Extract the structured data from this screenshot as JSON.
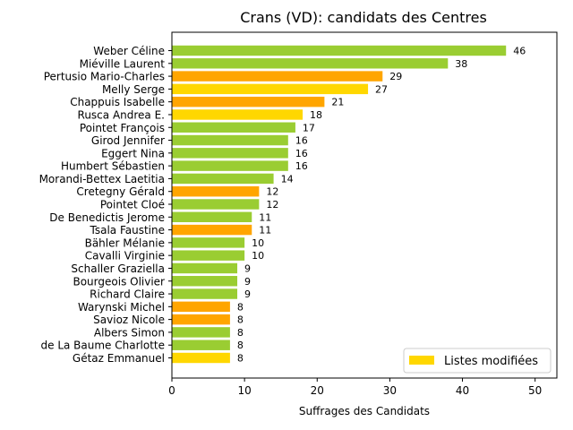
{
  "chart_data": {
    "type": "bar",
    "orientation": "horizontal",
    "title": "Crans (VD): candidats des Centres",
    "xlabel": "Suffrages des Candidats",
    "ylabel": "",
    "xlim": [
      0,
      53
    ],
    "xticks": [
      0,
      10,
      20,
      30,
      40,
      50
    ],
    "grid": false,
    "legend": {
      "position": "lower-right",
      "entries": [
        {
          "label": "Listes modifiées",
          "color": "#FFD700"
        }
      ]
    },
    "colors": {
      "green": "#9ACD32",
      "orange": "#FFA500",
      "yellow": "#FFD700"
    },
    "bars": [
      {
        "name": "Weber Céline",
        "value": 46,
        "color": "green"
      },
      {
        "name": "Miéville Laurent",
        "value": 38,
        "color": "green"
      },
      {
        "name": "Pertusio Mario-Charles",
        "value": 29,
        "color": "orange"
      },
      {
        "name": "Melly Serge",
        "value": 27,
        "color": "yellow"
      },
      {
        "name": "Chappuis Isabelle",
        "value": 21,
        "color": "orange"
      },
      {
        "name": "Rusca Andrea E.",
        "value": 18,
        "color": "yellow"
      },
      {
        "name": "Pointet François",
        "value": 17,
        "color": "green"
      },
      {
        "name": "Girod Jennifer",
        "value": 16,
        "color": "green"
      },
      {
        "name": "Eggert Nina",
        "value": 16,
        "color": "green"
      },
      {
        "name": "Humbert Sébastien",
        "value": 16,
        "color": "green"
      },
      {
        "name": "Morandi-Bettex Laetitia",
        "value": 14,
        "color": "green"
      },
      {
        "name": "Cretegny Gérald",
        "value": 12,
        "color": "orange"
      },
      {
        "name": "Pointet Cloé",
        "value": 12,
        "color": "green"
      },
      {
        "name": "De Benedictis Jerome",
        "value": 11,
        "color": "green"
      },
      {
        "name": "Tsala Faustine",
        "value": 11,
        "color": "orange"
      },
      {
        "name": "Bähler Mélanie",
        "value": 10,
        "color": "green"
      },
      {
        "name": "Cavalli Virginie",
        "value": 10,
        "color": "green"
      },
      {
        "name": "Schaller Graziella",
        "value": 9,
        "color": "green"
      },
      {
        "name": "Bourgeois Olivier",
        "value": 9,
        "color": "green"
      },
      {
        "name": "Richard Claire",
        "value": 9,
        "color": "green"
      },
      {
        "name": "Warynski Michel",
        "value": 8,
        "color": "orange"
      },
      {
        "name": "Savioz Nicole",
        "value": 8,
        "color": "orange"
      },
      {
        "name": "Albers Simon",
        "value": 8,
        "color": "green"
      },
      {
        "name": "de La Baume Charlotte",
        "value": 8,
        "color": "green"
      },
      {
        "name": "Gétaz Emmanuel",
        "value": 8,
        "color": "yellow"
      }
    ]
  }
}
